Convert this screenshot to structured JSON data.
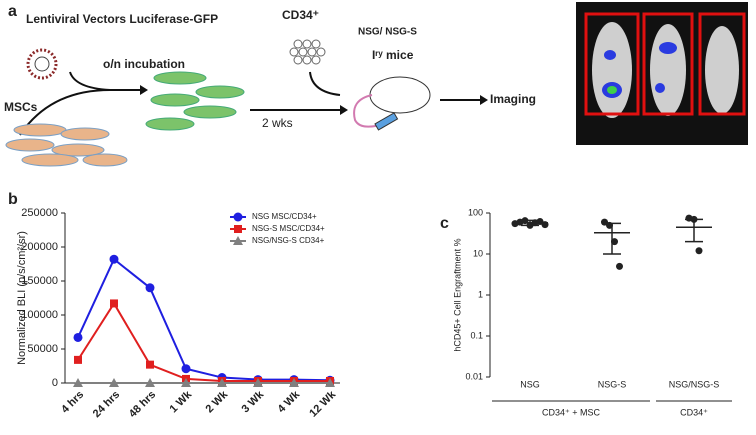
{
  "panel_labels": [
    "a",
    "b",
    "c"
  ],
  "schematic": {
    "vector_label": "Lentiviral Vectors Luciferase-GFP",
    "incubation": "o/n incubation",
    "msc_label": "MSCs",
    "duration": "2 wks",
    "cd34_label": "CD34⁺",
    "mice_label": "NSG/ NSG-S",
    "mice_sub": "Iʳʸ mice",
    "imaging": "Imaging"
  },
  "chart_data": [
    {
      "type": "line",
      "y_label": "Normalized BLI (p/s/cm²/sr)",
      "categories": [
        "4 hrs",
        "24 hrs",
        "48 hrs",
        "1 Wk",
        "2 Wk",
        "3 Wk",
        "4 Wk",
        "12 Wk"
      ],
      "series": [
        {
          "name": "NSG MSC/CD34+",
          "color": "#1f1fe0",
          "marker": "circle",
          "values": [
            67000,
            182000,
            140000,
            21000,
            8000,
            5000,
            5000,
            4000
          ]
        },
        {
          "name": "NSG-S MSC/CD34+",
          "color": "#e01f1f",
          "marker": "square",
          "values": [
            34000,
            117000,
            27000,
            6000,
            3000,
            3000,
            3000,
            3000
          ]
        },
        {
          "name": "NSG/NSG-S CD34+",
          "color": "#808080",
          "marker": "triangle",
          "values": [
            0,
            0,
            0,
            0,
            0,
            0,
            0,
            0
          ]
        }
      ],
      "ylim": [
        0,
        250000
      ],
      "yticks": [
        0,
        50000,
        100000,
        150000,
        200000,
        250000
      ],
      "legend": "top-right"
    },
    {
      "type": "strip",
      "y_label": "hCD45+ Cell Engraftment %",
      "log_scale": true,
      "categories": [
        "NSG",
        "NSG-S",
        "NSG/NSG-S"
      ],
      "values": [
        [
          55,
          60,
          65,
          50,
          58,
          62,
          52
        ],
        [
          60,
          50,
          20,
          5
        ],
        [
          75,
          70,
          12
        ]
      ],
      "means": [
        58,
        33,
        45
      ],
      "error_low": [
        50,
        10,
        20
      ],
      "error_high": [
        66,
        56,
        70
      ],
      "groups": [
        {
          "label": "CD34⁺ + MSC",
          "span": [
            0,
            1
          ]
        },
        {
          "label": "CD34⁺",
          "span": [
            2,
            2
          ]
        }
      ],
      "ylim": [
        0.01,
        100
      ],
      "yticks": [
        0.01,
        0.1,
        1,
        10,
        100
      ],
      "color": "#222222"
    }
  ]
}
